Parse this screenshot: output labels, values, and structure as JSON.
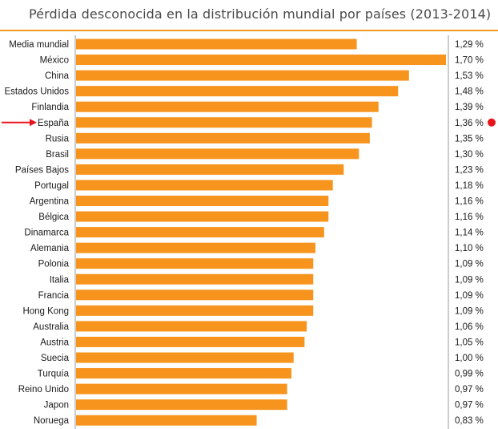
{
  "chart_data": {
    "type": "bar",
    "orientation": "horizontal",
    "title": "Pérdida desconocida en la distribución mundial por países (2013-2014)",
    "categories": [
      "Media mundial",
      "México",
      "China",
      "Estados Unidos",
      "Finlandia",
      "España",
      "Rusia",
      "Brasil",
      "Países Bajos",
      "Portugal",
      "Argentina",
      "Bélgica",
      "Dinamarca",
      "Alemania",
      "Polonia",
      "Italia",
      "Francia",
      "Hong Kong",
      "Australia",
      "Austria",
      "Suecia",
      "Turquía",
      "Reino Unido",
      "Japon",
      "Noruega"
    ],
    "values": [
      1.29,
      1.7,
      1.53,
      1.48,
      1.39,
      1.36,
      1.35,
      1.3,
      1.23,
      1.18,
      1.16,
      1.16,
      1.14,
      1.1,
      1.09,
      1.09,
      1.09,
      1.09,
      1.06,
      1.05,
      1.0,
      0.99,
      0.97,
      0.97,
      0.83
    ],
    "value_labels": [
      "1,29 %",
      "1,70 %",
      "1,53 %",
      "1,48 %",
      "1,39 %",
      "1,36 %",
      "1,35 %",
      "1,30 %",
      "1,23 %",
      "1,18 %",
      "1,16 %",
      "1,16 %",
      "1,14 %",
      "1,10 %",
      "1,09 %",
      "1,09 %",
      "1,09 %",
      "1,09 %",
      "1,06 %",
      "1,05 %",
      "1,00 %",
      "0,99 %",
      "0,97 %",
      "0,97 %",
      "0,83 %"
    ],
    "highlight_category": "España",
    "bar_color": "#f7941d",
    "highlight_marker_color": "#e8141b",
    "grid": false
  }
}
